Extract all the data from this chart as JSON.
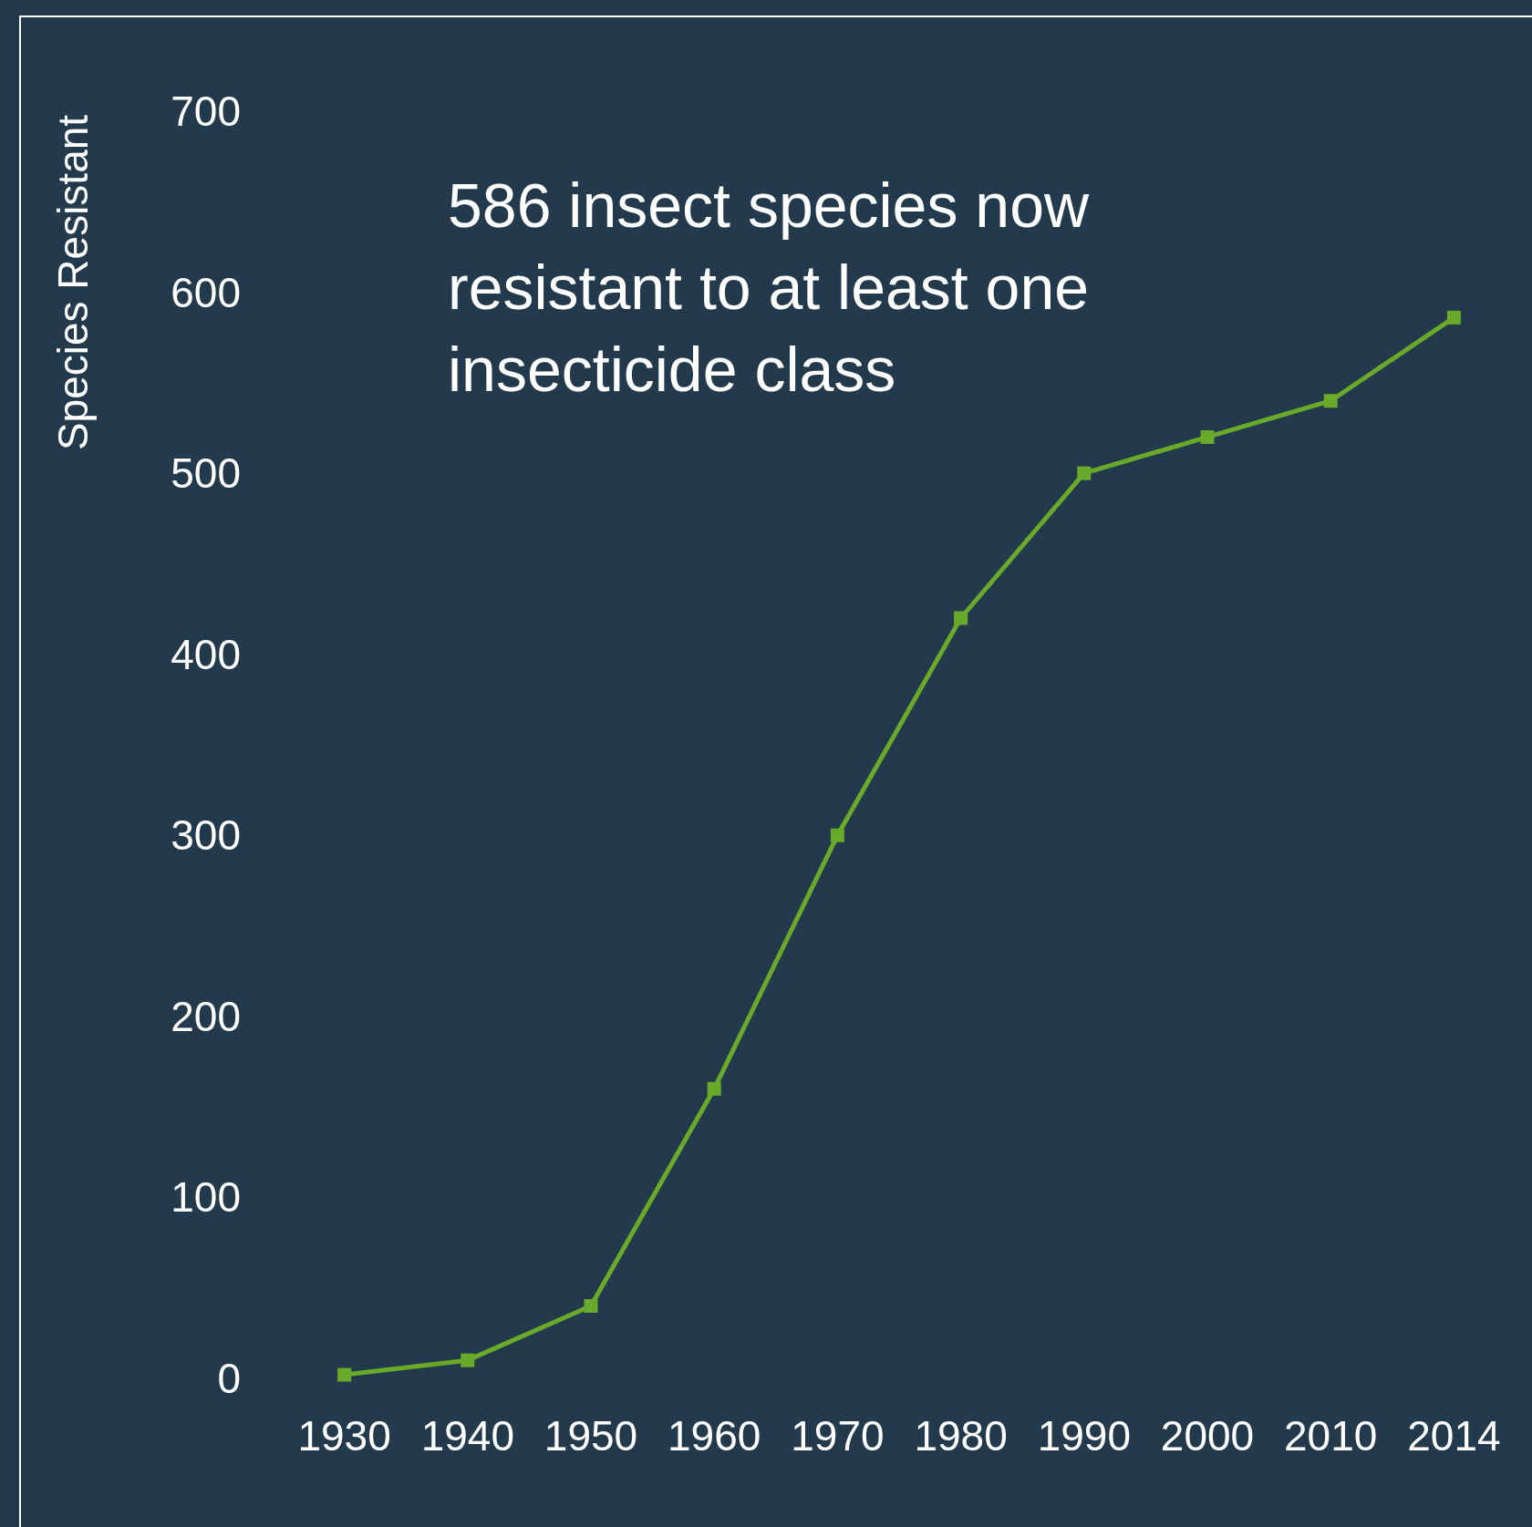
{
  "chart_data": {
    "type": "line",
    "ylabel": "Species Resistant",
    "annotations": [
      "586 insect species now resistant to at least one insecticide class"
    ],
    "categories": [
      "1930",
      "1940",
      "1950",
      "1960",
      "1970",
      "1980",
      "1990",
      "2000",
      "2010",
      "2014"
    ],
    "series": [
      {
        "color": "#6aaa2a",
        "values": [
          2,
          10,
          40,
          160,
          300,
          420,
          500,
          520,
          540,
          586
        ]
      }
    ],
    "ylim": [
      0,
      700
    ],
    "yticks": [
      0,
      100,
      200,
      300,
      400,
      500,
      600,
      700
    ],
    "grid": false,
    "marker": "square",
    "line_style": "solid"
  }
}
